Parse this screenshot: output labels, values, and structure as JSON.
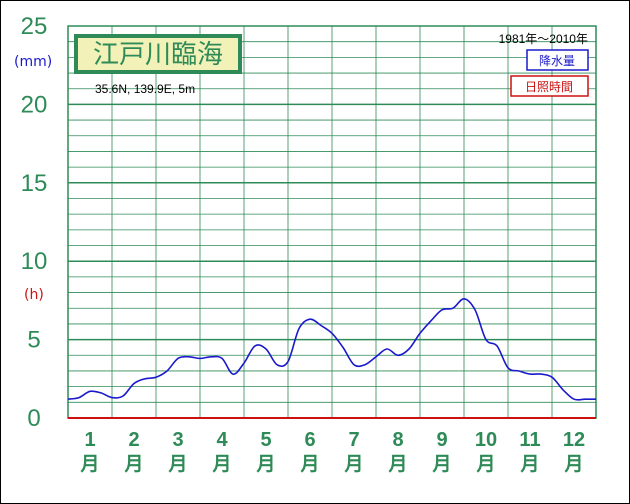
{
  "chart_data": {
    "type": "line",
    "title": "江戸川臨海",
    "subtitle": "35.6N,  139.9E,  5m",
    "period": "1981年〜2010年",
    "legend": [
      {
        "label": "降水量",
        "color": "#1a1acc"
      },
      {
        "label": "日照時間",
        "color": "#cc1111"
      }
    ],
    "legend_position": "top-right",
    "y_ticks": [
      "0",
      "5",
      "10",
      "15",
      "20",
      "25"
    ],
    "y_units": [
      {
        "label": "(mm)",
        "color": "#1a1acc"
      },
      {
        "label": "(h)",
        "color": "#cc1111"
      }
    ],
    "ylim": [
      0,
      25
    ],
    "xlim": [
      0.5,
      12.5
    ],
    "x_ticks": [
      {
        "num": "1",
        "unit": "月"
      },
      {
        "num": "2",
        "unit": "月"
      },
      {
        "num": "3",
        "unit": "月"
      },
      {
        "num": "4",
        "unit": "月"
      },
      {
        "num": "5",
        "unit": "月"
      },
      {
        "num": "6",
        "unit": "月"
      },
      {
        "num": "7",
        "unit": "月"
      },
      {
        "num": "8",
        "unit": "月"
      },
      {
        "num": "9",
        "unit": "月"
      },
      {
        "num": "10",
        "unit": "月"
      },
      {
        "num": "11",
        "unit": "月"
      },
      {
        "num": "12",
        "unit": "月"
      }
    ],
    "grid": true,
    "series": [
      {
        "name": "降水量",
        "color": "#1a1acc",
        "x": [
          0.5,
          0.75,
          1.0,
          1.25,
          1.5,
          1.75,
          2.0,
          2.25,
          2.5,
          2.75,
          3.0,
          3.25,
          3.5,
          3.75,
          4.0,
          4.25,
          4.5,
          4.75,
          5.0,
          5.25,
          5.5,
          5.75,
          6.0,
          6.25,
          6.5,
          6.75,
          7.0,
          7.25,
          7.5,
          7.75,
          8.0,
          8.25,
          8.5,
          8.75,
          9.0,
          9.25,
          9.5,
          9.75,
          10.0,
          10.25,
          10.5,
          10.75,
          11.0,
          11.25,
          11.5,
          11.75,
          12.0,
          12.25,
          12.5
        ],
        "values": [
          1.2,
          1.3,
          1.7,
          1.6,
          1.3,
          1.4,
          2.2,
          2.5,
          2.6,
          3.0,
          3.8,
          3.9,
          3.8,
          3.9,
          3.8,
          2.8,
          3.5,
          4.6,
          4.4,
          3.4,
          3.6,
          5.7,
          6.3,
          5.9,
          5.4,
          4.5,
          3.4,
          3.4,
          3.9,
          4.4,
          4.0,
          4.4,
          5.4,
          6.2,
          6.9,
          7.0,
          7.6,
          6.9,
          5.0,
          4.6,
          3.2,
          3.0,
          2.8,
          2.8,
          2.6,
          1.8,
          1.2,
          1.2,
          1.2
        ]
      },
      {
        "name": "日照時間",
        "color": "#cc1111",
        "x": [
          0.5,
          12.5
        ],
        "values": [
          0,
          0
        ]
      }
    ]
  }
}
